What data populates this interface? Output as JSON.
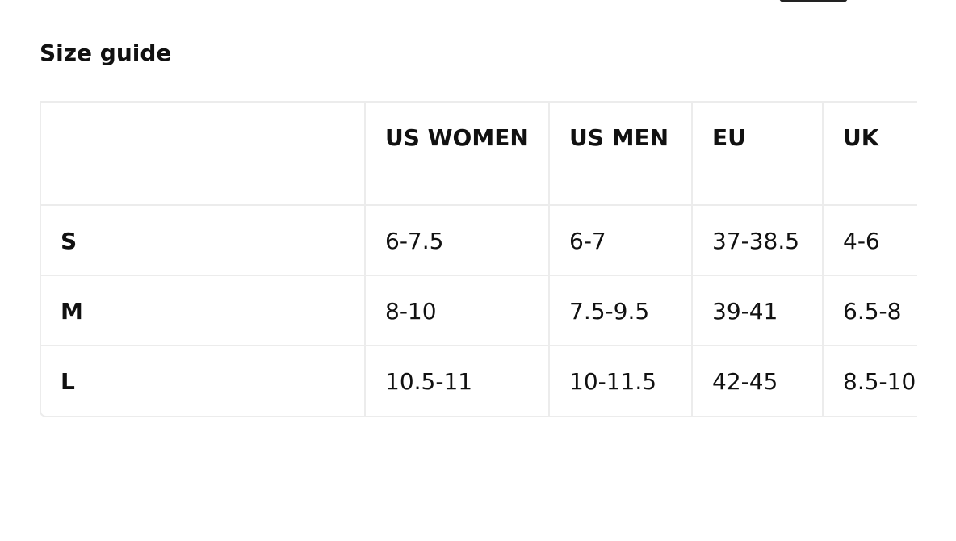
{
  "header": {
    "title": "Size guide"
  },
  "table": {
    "columns": [
      "US WOMEN",
      "US MEN",
      "EU",
      "UK"
    ],
    "rows": [
      [
        "S",
        "6-7.5",
        "6-7",
        "37-38.5",
        "4-6"
      ],
      [
        "M",
        "8-10",
        "7.5-9.5",
        "39-41",
        "6.5-8"
      ],
      [
        "L",
        "10.5-11",
        "10-11.5",
        "42-45",
        "8.5-10"
      ]
    ]
  }
}
